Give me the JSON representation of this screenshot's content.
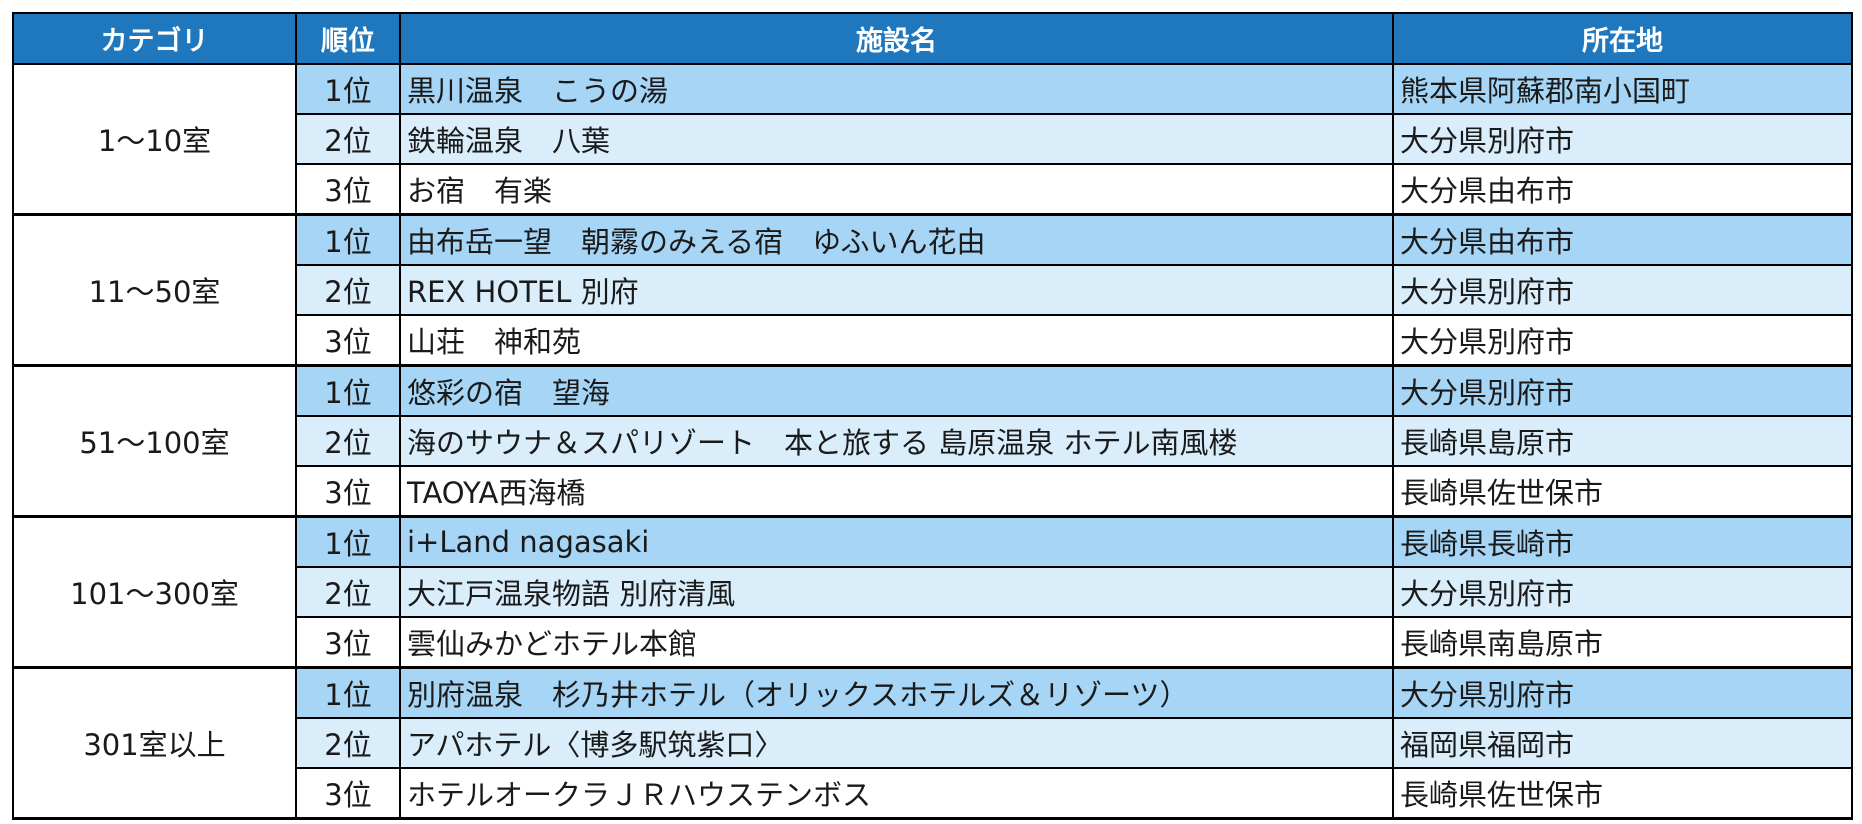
{
  "headers": {
    "category": "カテゴリ",
    "rank": "順位",
    "facility": "施設名",
    "location": "所在地"
  },
  "groups": [
    {
      "category": "1～10室",
      "rows": [
        {
          "rank": "1位",
          "facility": "黒川温泉　こうの湯",
          "location": "熊本県阿蘇郡南小国町"
        },
        {
          "rank": "2位",
          "facility": "鉄輪温泉　八葉",
          "location": "大分県別府市"
        },
        {
          "rank": "3位",
          "facility": "お宿　有楽",
          "location": "大分県由布市"
        }
      ]
    },
    {
      "category": "11～50室",
      "rows": [
        {
          "rank": "1位",
          "facility": "由布岳一望　朝霧のみえる宿　ゆふいん花由",
          "location": "大分県由布市"
        },
        {
          "rank": "2位",
          "facility": "REX HOTEL 別府",
          "location": "大分県別府市"
        },
        {
          "rank": "3位",
          "facility": "山荘　神和苑",
          "location": "大分県別府市"
        }
      ]
    },
    {
      "category": "51～100室",
      "rows": [
        {
          "rank": "1位",
          "facility": "悠彩の宿　望海",
          "location": "大分県別府市"
        },
        {
          "rank": "2位",
          "facility": "海のサウナ＆スパリゾート　本と旅する 島原温泉 ホテル南風楼",
          "location": "長崎県島原市"
        },
        {
          "rank": "3位",
          "facility": "TAOYA西海橋",
          "location": "長崎県佐世保市"
        }
      ]
    },
    {
      "category": "101～300室",
      "rows": [
        {
          "rank": "1位",
          "facility": "i+Land nagasaki",
          "location": "長崎県長崎市"
        },
        {
          "rank": "2位",
          "facility": "大江戸温泉物語 別府清風",
          "location": "大分県別府市"
        },
        {
          "rank": "3位",
          "facility": "雲仙みかどホテル本館",
          "location": "長崎県南島原市"
        }
      ]
    },
    {
      "category": "301室以上",
      "rows": [
        {
          "rank": "1位",
          "facility": "別府温泉　杉乃井ホテル（オリックスホテルズ＆リゾーツ）",
          "location": "大分県別府市"
        },
        {
          "rank": "2位",
          "facility": "アパホテル〈博多駅筑紫口〉",
          "location": "福岡県福岡市"
        },
        {
          "rank": "3位",
          "facility": "ホテルオークラＪＲハウステンボス",
          "location": "長崎県佐世保市"
        }
      ]
    }
  ],
  "colors": {
    "header_bg": "#1f78bd",
    "row1_bg": "#a6d5f5",
    "row2_bg": "#d9edfb",
    "row3_bg": "#ffffff"
  }
}
